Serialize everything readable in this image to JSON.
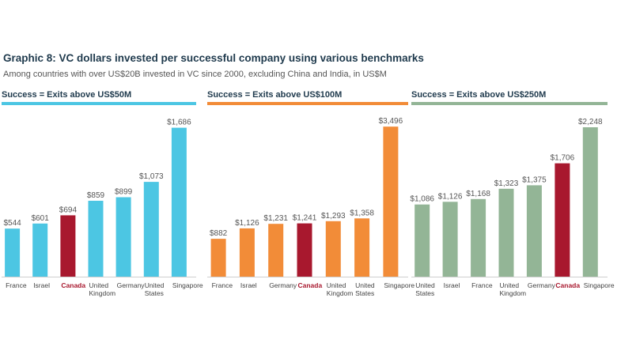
{
  "title": "Graphic 8: VC dollars invested per successful company using various benchmarks",
  "subtitle": "Among countries with over US$20B invested in VC since 2000, excluding China and India, in US$M",
  "colors": {
    "panel1": "#4cc6e3",
    "panel2": "#f28c38",
    "panel3": "#93b596",
    "highlight": "#a8182e"
  },
  "chart_data": [
    {
      "type": "bar",
      "title": "Success = Exits above US$50M",
      "categories": [
        "France",
        "Israel",
        "Canada",
        "United Kingdom",
        "Germany",
        "United States",
        "Singapore"
      ],
      "category_lines": [
        [
          "France"
        ],
        [
          "Israel"
        ],
        [
          "Canada"
        ],
        [
          "United",
          "Kingdom"
        ],
        [
          "Germany"
        ],
        [
          "United",
          "States"
        ],
        [
          "Singapore"
        ]
      ],
      "values": [
        544,
        601,
        694,
        859,
        899,
        1073,
        1686
      ],
      "labels": [
        "$544",
        "$601",
        "$694",
        "$859",
        "$899",
        "$1,073",
        "$1,686"
      ],
      "highlight": "Canada",
      "ylim": [
        0,
        1700
      ]
    },
    {
      "type": "bar",
      "title": "Success = Exits above US$100M",
      "categories": [
        "France",
        "Israel",
        "Germany",
        "Canada",
        "United Kingdom",
        "United States",
        "Singapore"
      ],
      "category_lines": [
        [
          "France"
        ],
        [
          "Israel"
        ],
        [
          "Germany"
        ],
        [
          "Canada"
        ],
        [
          "United",
          "Kingdom"
        ],
        [
          "United",
          "States"
        ],
        [
          "Singapore"
        ]
      ],
      "values": [
        882,
        1126,
        1231,
        1241,
        1293,
        1358,
        3496
      ],
      "labels": [
        "$882",
        "$1,126",
        "$1,231",
        "$1,241",
        "$1,293",
        "$1,358",
        "$3,496"
      ],
      "highlight": "Canada",
      "ylim": [
        0,
        3500
      ]
    },
    {
      "type": "bar",
      "title": "Success = Exits above US$250M",
      "categories": [
        "United States",
        "Israel",
        "France",
        "United Kingdom",
        "Germany",
        "Canada",
        "Singapore"
      ],
      "category_lines": [
        [
          "United",
          "States"
        ],
        [
          "Israel"
        ],
        [
          "France"
        ],
        [
          "United",
          "Kingdom"
        ],
        [
          "Germany"
        ],
        [
          "Canada"
        ],
        [
          "Singapore"
        ]
      ],
      "values": [
        1086,
        1126,
        1168,
        1323,
        1375,
        1706,
        2248
      ],
      "labels": [
        "$1,086",
        "$1,126",
        "$1,168",
        "$1,323",
        "$1,375",
        "$1,706",
        "$2,248"
      ],
      "highlight": "Canada",
      "ylim": [
        0,
        2260
      ]
    }
  ]
}
